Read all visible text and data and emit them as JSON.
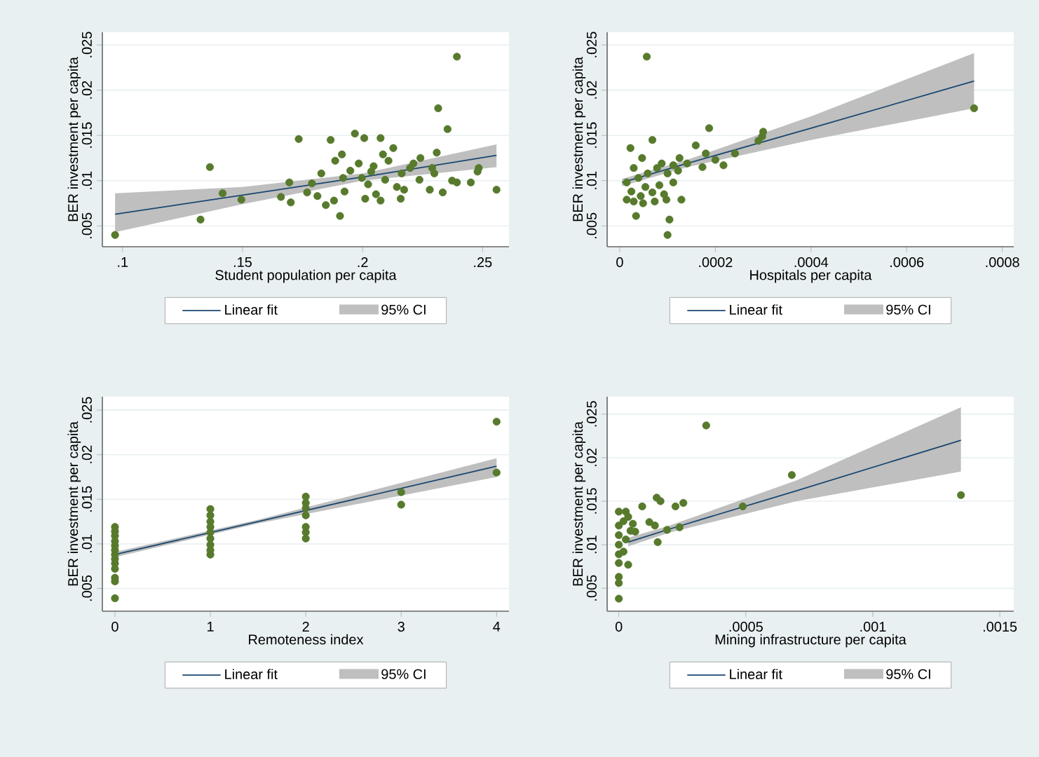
{
  "chart_data": [
    {
      "type": "scatter",
      "xlabel": "Student population per capita",
      "ylabel": "BER investment per capita",
      "annotations": [
        "95% CI"
      ],
      "xlim": [
        0.0916,
        0.261
      ],
      "ylim": [
        0.0027,
        0.0264
      ],
      "xticks": [
        {
          "value": 0.1,
          "label": ".1"
        },
        {
          "value": 0.15,
          "label": ".15"
        },
        {
          "value": 0.2,
          "label": ".2"
        },
        {
          "value": 0.25,
          "label": ".25"
        }
      ],
      "yticks": [
        {
          "value": 0.005,
          "label": ".005"
        },
        {
          "value": 0.01,
          "label": ".01"
        },
        {
          "value": 0.015,
          "label": ".015"
        },
        {
          "value": 0.02,
          "label": ".02"
        },
        {
          "value": 0.025,
          "label": ".025"
        }
      ],
      "grid": "y",
      "legend": "bottom",
      "series": [
        {
          "type": "scatter",
          "color": "#577a2c",
          "marker": "circle",
          "x": [
            0.0969,
            0.1325,
            0.1364,
            0.1417,
            0.1495,
            0.166,
            0.1695,
            0.1701,
            0.1734,
            0.1769,
            0.1789,
            0.1812,
            0.1828,
            0.1847,
            0.1867,
            0.1886,
            0.1881,
            0.1906,
            0.1914,
            0.1919,
            0.1925,
            0.1968,
            0.1984,
            0.1997,
            0.2007,
            0.2011,
            0.2023,
            0.2046,
            0.2056,
            0.2075,
            0.2075,
            0.2085,
            0.2108,
            0.2128,
            0.2143,
            0.2159,
            0.2173,
            0.2163,
            0.2198,
            0.2212,
            0.2241,
            0.2237,
            0.228,
            0.229,
            0.2299,
            0.2309,
            0.2315,
            0.2334,
            0.2354,
            0.2373,
            0.2393,
            0.2393,
            0.2451,
            0.2479,
            0.2484,
            0.2558,
            0.1949,
            0.2036,
            0.2094
          ],
          "values": [
            0.004,
            0.0057,
            0.0115,
            0.0086,
            0.0079,
            0.0082,
            0.0098,
            0.0076,
            0.0146,
            0.0087,
            0.0097,
            0.0083,
            0.0108,
            0.0073,
            0.0145,
            0.0122,
            0.0078,
            0.0061,
            0.0129,
            0.0103,
            0.0088,
            0.0152,
            0.0119,
            0.0103,
            0.0147,
            0.008,
            0.0096,
            0.0116,
            0.0085,
            0.0147,
            0.0078,
            0.0129,
            0.0122,
            0.0136,
            0.0093,
            0.008,
            0.009,
            0.0108,
            0.0114,
            0.0119,
            0.0125,
            0.0101,
            0.009,
            0.0114,
            0.0108,
            0.0131,
            0.018,
            0.0087,
            0.0157,
            0.01,
            0.0237,
            0.0098,
            0.0098,
            0.011,
            0.0114,
            0.009,
            0.0111,
            0.011,
            0.0101
          ]
        },
        {
          "type": "line",
          "name": "Linear fit",
          "color": "#1a476f",
          "x": [
            0.0969,
            0.15,
            0.2,
            0.2558
          ],
          "values": [
            0.0063,
            0.0084,
            0.0104,
            0.0128
          ],
          "lower": [
            0.0043,
            0.0074,
            0.01,
            0.0115
          ],
          "upper": [
            0.0086,
            0.0093,
            0.0108,
            0.014
          ]
        }
      ]
    },
    {
      "type": "scatter",
      "xlabel": "Hospitals per capita",
      "ylabel": "BER investment per capita",
      "annotations": [
        "95% CI"
      ],
      "xlim": [
        -2.63e-05,
        0.000824
      ],
      "ylim": [
        0.0027,
        0.0264
      ],
      "xticks": [
        0,
        {
          "value": 0.0002,
          "label": ".0002"
        },
        {
          "value": 0.0004,
          "label": ".0004"
        },
        {
          "value": 0.0006,
          "label": ".0006"
        },
        {
          "value": 0.0008,
          "label": ".0008"
        }
      ],
      "yticks": [
        {
          "value": 0.005,
          "label": ".005"
        },
        {
          "value": 0.01,
          "label": ".01"
        },
        {
          "value": 0.015,
          "label": ".015"
        },
        {
          "value": 0.02,
          "label": ".02"
        },
        {
          "value": 0.025,
          "label": ".025"
        }
      ],
      "grid": "y",
      "legend": "bottom",
      "series": [
        {
          "type": "scatter",
          "color": "#577a2c",
          "marker": "circle",
          "x": [
            5.66e-05,
            0.000741,
            0.000298,
            0.0003,
            0.00029,
            0.000241,
            0.000187,
            0.000159,
            0.00018,
            0.000173,
            0.0002,
            0.000217,
            0.000141,
            0.000125,
            0.000129,
            0.000104,
            0.0001,
            6.83e-05,
            2.24e-05,
            4.68e-05,
            3.41e-05,
            9.76e-05,
            0.000112,
            1.46e-05,
            1.46e-05,
            2.44e-05,
            2.93e-05,
            3.9e-05,
            4.39e-05,
            5.37e-05,
            5.85e-05,
            6.83e-05,
            7.8e-05,
            8.29e-05,
            8.78e-05,
            9.27e-05,
            0.0001,
            0.000112,
            0.000122,
            4.88e-05,
            7.32e-05,
            2.93e-05
          ],
          "values": [
            0.0237,
            0.018,
            0.0149,
            0.0154,
            0.0144,
            0.013,
            0.0158,
            0.0139,
            0.013,
            0.0115,
            0.0123,
            0.0117,
            0.0119,
            0.0125,
            0.0079,
            0.0057,
            0.004,
            0.0145,
            0.0136,
            0.0125,
            0.0061,
            0.0079,
            0.0098,
            0.0098,
            0.0079,
            0.0088,
            0.0114,
            0.0103,
            0.0083,
            0.0093,
            0.0108,
            0.0087,
            0.0114,
            0.0095,
            0.0119,
            0.0085,
            0.0108,
            0.0117,
            0.0111,
            0.0075,
            0.0077,
            0.0077
          ]
        },
        {
          "type": "line",
          "name": "Linear fit",
          "color": "#1a476f",
          "x": [
            4.9e-06,
            0.000141,
            0.0004,
            0.000741
          ],
          "values": [
            0.0098,
            0.0119,
            0.0158,
            0.021
          ],
          "lower": [
            0.0094,
            0.0115,
            0.0145,
            0.018
          ],
          "upper": [
            0.0102,
            0.0123,
            0.0171,
            0.0241
          ]
        }
      ]
    },
    {
      "type": "scatter",
      "xlabel": "Remoteness index",
      "ylabel": "BER investment per capita",
      "annotations": [
        "95% CI"
      ],
      "xlim": [
        -0.132,
        4.13
      ],
      "ylim": [
        0.00245,
        0.0265
      ],
      "xticks": [
        0,
        1,
        2,
        3,
        4
      ],
      "yticks": [
        {
          "value": 0.005,
          "label": ".005"
        },
        {
          "value": 0.01,
          "label": ".01"
        },
        {
          "value": 0.015,
          "label": ".015"
        },
        {
          "value": 0.02,
          "label": ".02"
        },
        {
          "value": 0.025,
          "label": ".025"
        }
      ],
      "grid": "y",
      "legend": "bottom",
      "series": [
        {
          "type": "scatter",
          "color": "#577a2c",
          "marker": "circle",
          "x": [
            0,
            0,
            0,
            0,
            0,
            0,
            0,
            0,
            0,
            0,
            0,
            0,
            0,
            1,
            1,
            1,
            1,
            1,
            1,
            1,
            1,
            1,
            2,
            2,
            2,
            2,
            2,
            2,
            2,
            3,
            3,
            4,
            4
          ],
          "values": [
            0.0119,
            0.0114,
            0.0109,
            0.0103,
            0.0098,
            0.0093,
            0.0088,
            0.0083,
            0.0078,
            0.0072,
            0.0062,
            0.0058,
            0.0039,
            0.0139,
            0.0132,
            0.0125,
            0.0119,
            0.0113,
            0.0106,
            0.0099,
            0.0093,
            0.0088,
            0.0153,
            0.0146,
            0.014,
            0.0132,
            0.0119,
            0.0113,
            0.0106,
            0.0158,
            0.0144,
            0.0237,
            0.018
          ]
        },
        {
          "type": "line",
          "name": "Linear fit",
          "color": "#1a476f",
          "x": [
            0,
            1.5,
            4
          ],
          "values": [
            0.0088,
            0.0125,
            0.0187
          ],
          "lower": [
            0.0085,
            0.0123,
            0.0175
          ],
          "upper": [
            0.0091,
            0.0127,
            0.0196
          ]
        }
      ]
    },
    {
      "type": "scatter",
      "xlabel": "Mining infrastructure per capita",
      "ylabel": "BER investment per capita",
      "annotations": [
        "95% CI"
      ],
      "xlim": [
        -4.6e-05,
        0.001555
      ],
      "ylim": [
        0.00236,
        0.027
      ],
      "xticks": [
        0,
        {
          "value": 0.0005,
          "label": ".0005"
        },
        {
          "value": 0.001,
          "label": ".001"
        },
        {
          "value": 0.0015,
          "label": ".0015"
        }
      ],
      "yticks": [
        {
          "value": 0.005,
          "label": ".005"
        },
        {
          "value": 0.01,
          "label": ".01"
        },
        {
          "value": 0.015,
          "label": ".015"
        },
        {
          "value": 0.02,
          "label": ".02"
        },
        {
          "value": 0.025,
          "label": ".025"
        }
      ],
      "grid": "y",
      "legend": "bottom",
      "series": [
        {
          "type": "scatter",
          "color": "#577a2c",
          "marker": "circle",
          "x": [
            0.000344,
            0.000681,
            0.001347,
            0.000488,
            0.000254,
            0.000223,
            0.000149,
            0.000164,
            9.2e-05,
            0.00012,
            0.000142,
            0.00019,
            0.000239,
            0.000153,
            6.44e-05,
            3.68e-05,
            0,
            0,
            0,
            0,
            0,
            0,
            0,
            0,
            0,
            1.84e-05,
            2.76e-05,
            3.68e-05,
            4.6e-05,
            1.84e-05,
            5.52e-05,
            2.76e-05
          ],
          "values": [
            0.0237,
            0.018,
            0.0157,
            0.0144,
            0.0148,
            0.0144,
            0.0154,
            0.015,
            0.0144,
            0.0126,
            0.0122,
            0.0117,
            0.012,
            0.0103,
            0.0115,
            0.0077,
            0.0138,
            0.0122,
            0.0111,
            0.01,
            0.0089,
            0.0079,
            0.0063,
            0.0056,
            0.0038,
            0.0127,
            0.0106,
            0.0132,
            0.0116,
            0.0092,
            0.0124,
            0.0138
          ]
        },
        {
          "type": "line",
          "name": "Linear fit",
          "color": "#1a476f",
          "x": [
            3.68e-05,
            0.0002,
            0.0007,
            0.001347
          ],
          "values": [
            0.0103,
            0.0118,
            0.0162,
            0.022
          ],
          "lower": [
            0.0098,
            0.0114,
            0.015,
            0.0184
          ],
          "upper": [
            0.0108,
            0.0122,
            0.0174,
            0.0258
          ]
        }
      ]
    }
  ]
}
